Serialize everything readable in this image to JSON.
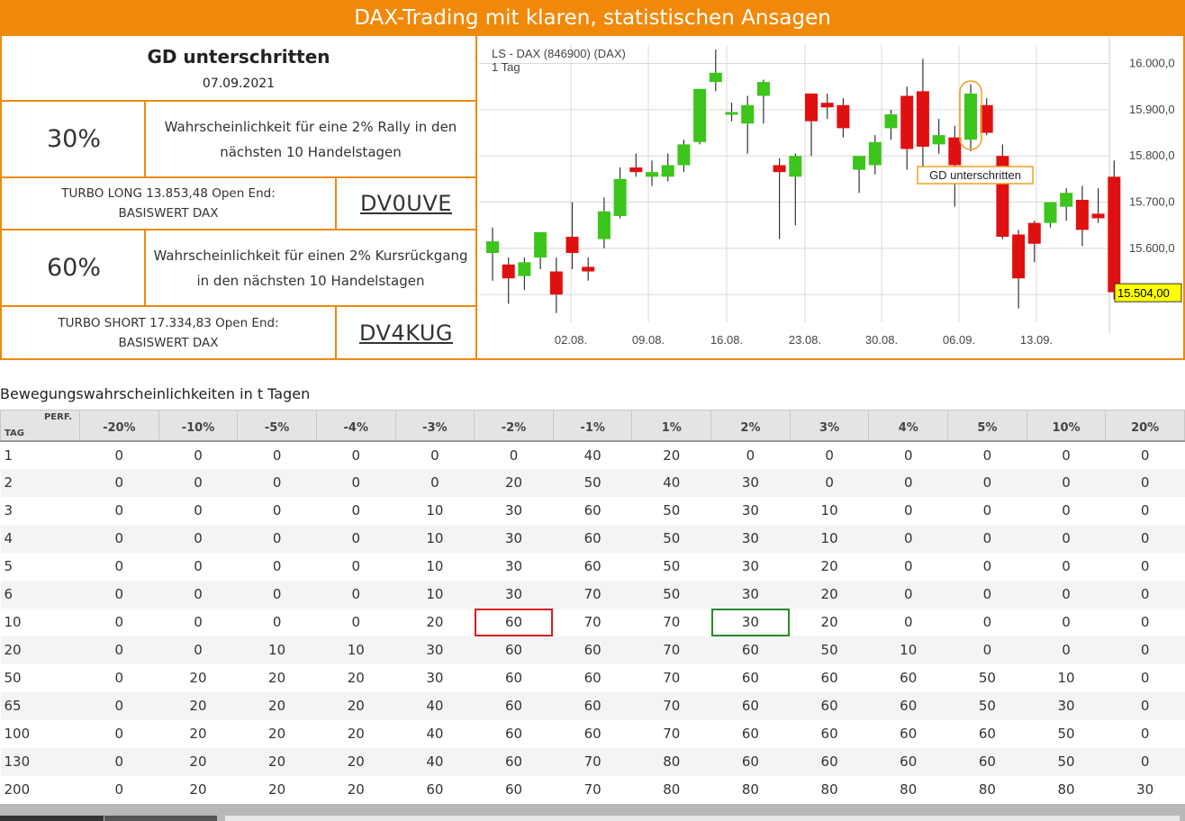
{
  "banner": {
    "title": "DAX-Trading mit klaren, statistischen Ansagen"
  },
  "signal": {
    "title": "GD unterschritten",
    "date": "07.09.2021"
  },
  "long": {
    "probability": "30%",
    "description_line1": "Wahrscheinlichkeit für eine 2% Rally in den",
    "description_line2": "nächsten 10 Handelstagen",
    "turbo_line1": "TURBO LONG 13.853,48 Open End:",
    "turbo_line2": "BASISWERT DAX",
    "code": "DV0UVE"
  },
  "short": {
    "probability": "60%",
    "description_line1": "Wahrscheinlichkeit für einen 2% Kursrückgang",
    "description_line2": "in den nächsten 10 Handelstagen",
    "turbo_line1": "TURBO SHORT 17.334,83 Open End:",
    "turbo_line2": "BASISWERT DAX",
    "code": "DV4KUG"
  },
  "chart_data": {
    "type": "candlestick",
    "title": "LS - DAX (846900) (DAX)",
    "subtitle": "1 Tag",
    "x_tick_labels": [
      "02.08.",
      "09.08.",
      "16.08.",
      "23.08.",
      "30.08.",
      "06.09.",
      "13.09."
    ],
    "y_tick_labels": [
      "16.000,0",
      "15.900,0",
      "15.800,0",
      "15.700,0",
      "15.600,0"
    ],
    "ylim": [
      15440,
      16040
    ],
    "last_price_label": "15.504,00",
    "annotation": "GD unterschritten",
    "colors": {
      "up": "#3cc51b",
      "down": "#e01010",
      "grid": "#d9d9d9",
      "label_box": "#ffff00",
      "annotation": "#f0a020"
    },
    "candles": [
      {
        "o": 15590,
        "h": 15645,
        "l": 15530,
        "c": 15615
      },
      {
        "o": 15565,
        "h": 15580,
        "l": 15480,
        "c": 15535
      },
      {
        "o": 15540,
        "h": 15580,
        "l": 15510,
        "c": 15570
      },
      {
        "o": 15580,
        "h": 15635,
        "l": 15555,
        "c": 15635
      },
      {
        "o": 15550,
        "h": 15580,
        "l": 15460,
        "c": 15500
      },
      {
        "o": 15625,
        "h": 15700,
        "l": 15555,
        "c": 15590
      },
      {
        "o": 15560,
        "h": 15580,
        "l": 15530,
        "c": 15550
      },
      {
        "o": 15620,
        "h": 15710,
        "l": 15600,
        "c": 15680
      },
      {
        "o": 15670,
        "h": 15775,
        "l": 15665,
        "c": 15750
      },
      {
        "o": 15775,
        "h": 15805,
        "l": 15755,
        "c": 15765
      },
      {
        "o": 15755,
        "h": 15790,
        "l": 15735,
        "c": 15765
      },
      {
        "o": 15755,
        "h": 15805,
        "l": 15745,
        "c": 15780
      },
      {
        "o": 15780,
        "h": 15835,
        "l": 15765,
        "c": 15825
      },
      {
        "o": 15830,
        "h": 15945,
        "l": 15825,
        "c": 15945
      },
      {
        "o": 15960,
        "h": 16030,
        "l": 15940,
        "c": 15980
      },
      {
        "o": 15895,
        "h": 15915,
        "l": 15875,
        "c": 15895
      },
      {
        "o": 15870,
        "h": 15930,
        "l": 15805,
        "c": 15910
      },
      {
        "o": 15930,
        "h": 15965,
        "l": 15870,
        "c": 15960
      },
      {
        "o": 15780,
        "h": 15795,
        "l": 15620,
        "c": 15765
      },
      {
        "o": 15755,
        "h": 15805,
        "l": 15650,
        "c": 15800
      },
      {
        "o": 15935,
        "h": 15935,
        "l": 15800,
        "c": 15875
      },
      {
        "o": 15915,
        "h": 15935,
        "l": 15880,
        "c": 15905
      },
      {
        "o": 15910,
        "h": 15925,
        "l": 15840,
        "c": 15860
      },
      {
        "o": 15770,
        "h": 15800,
        "l": 15720,
        "c": 15800
      },
      {
        "o": 15780,
        "h": 15845,
        "l": 15760,
        "c": 15830
      },
      {
        "o": 15860,
        "h": 15900,
        "l": 15835,
        "c": 15890
      },
      {
        "o": 15930,
        "h": 15950,
        "l": 15770,
        "c": 15815
      },
      {
        "o": 15940,
        "h": 16010,
        "l": 15770,
        "c": 15820
      },
      {
        "o": 15825,
        "h": 15880,
        "l": 15805,
        "c": 15845
      },
      {
        "o": 15840,
        "h": 15865,
        "l": 15690,
        "c": 15780
      },
      {
        "o": 15835,
        "h": 15955,
        "l": 15810,
        "c": 15935
      },
      {
        "o": 15910,
        "h": 15925,
        "l": 15845,
        "c": 15850
      },
      {
        "o": 15800,
        "h": 15825,
        "l": 15620,
        "c": 15625
      },
      {
        "o": 15630,
        "h": 15640,
        "l": 15470,
        "c": 15535
      },
      {
        "o": 15655,
        "h": 15660,
        "l": 15570,
        "c": 15610
      },
      {
        "o": 15655,
        "h": 15695,
        "l": 15645,
        "c": 15700
      },
      {
        "o": 15690,
        "h": 15730,
        "l": 15660,
        "c": 15720
      },
      {
        "o": 15705,
        "h": 15735,
        "l": 15605,
        "c": 15640
      },
      {
        "o": 15675,
        "h": 15730,
        "l": 15655,
        "c": 15665
      },
      {
        "o": 15755,
        "h": 15790,
        "l": 15490,
        "c": 15505
      }
    ]
  },
  "table": {
    "caption": "Bewegungswahrscheinlichkeiten in t Tagen",
    "corner_perf": "PERF.",
    "corner_tag": "TAG",
    "headers": [
      "-20%",
      "-10%",
      "-5%",
      "-4%",
      "-3%",
      "-2%",
      "-1%",
      "1%",
      "2%",
      "3%",
      "4%",
      "5%",
      "10%",
      "20%"
    ],
    "rows": [
      {
        "tag": "1",
        "values": [
          "0",
          "0",
          "0",
          "0",
          "0",
          "0",
          "40",
          "20",
          "0",
          "0",
          "0",
          "0",
          "0",
          "0"
        ]
      },
      {
        "tag": "2",
        "values": [
          "0",
          "0",
          "0",
          "0",
          "0",
          "20",
          "50",
          "40",
          "30",
          "0",
          "0",
          "0",
          "0",
          "0"
        ]
      },
      {
        "tag": "3",
        "values": [
          "0",
          "0",
          "0",
          "0",
          "10",
          "30",
          "60",
          "50",
          "30",
          "10",
          "0",
          "0",
          "0",
          "0"
        ]
      },
      {
        "tag": "4",
        "values": [
          "0",
          "0",
          "0",
          "0",
          "10",
          "30",
          "60",
          "50",
          "30",
          "10",
          "0",
          "0",
          "0",
          "0"
        ]
      },
      {
        "tag": "5",
        "values": [
          "0",
          "0",
          "0",
          "0",
          "10",
          "30",
          "60",
          "50",
          "30",
          "20",
          "0",
          "0",
          "0",
          "0"
        ]
      },
      {
        "tag": "6",
        "values": [
          "0",
          "0",
          "0",
          "0",
          "10",
          "30",
          "70",
          "50",
          "30",
          "20",
          "0",
          "0",
          "0",
          "0"
        ]
      },
      {
        "tag": "10",
        "values": [
          "0",
          "0",
          "0",
          "0",
          "20",
          "60",
          "70",
          "70",
          "30",
          "20",
          "0",
          "0",
          "0",
          "0"
        ]
      },
      {
        "tag": "20",
        "values": [
          "0",
          "0",
          "10",
          "10",
          "30",
          "60",
          "60",
          "70",
          "60",
          "50",
          "10",
          "0",
          "0",
          "0"
        ]
      },
      {
        "tag": "50",
        "values": [
          "0",
          "20",
          "20",
          "20",
          "30",
          "60",
          "60",
          "70",
          "60",
          "60",
          "60",
          "50",
          "10",
          "0"
        ]
      },
      {
        "tag": "65",
        "values": [
          "0",
          "20",
          "20",
          "20",
          "40",
          "60",
          "60",
          "70",
          "60",
          "60",
          "60",
          "50",
          "30",
          "0"
        ]
      },
      {
        "tag": "100",
        "values": [
          "0",
          "20",
          "20",
          "20",
          "40",
          "60",
          "60",
          "70",
          "60",
          "60",
          "60",
          "60",
          "50",
          "0"
        ]
      },
      {
        "tag": "130",
        "values": [
          "0",
          "20",
          "20",
          "20",
          "40",
          "60",
          "70",
          "80",
          "60",
          "60",
          "60",
          "60",
          "50",
          "0"
        ]
      },
      {
        "tag": "200",
        "values": [
          "0",
          "20",
          "20",
          "20",
          "60",
          "60",
          "70",
          "80",
          "80",
          "80",
          "80",
          "80",
          "80",
          "30"
        ]
      }
    ],
    "highlights": [
      {
        "row": 6,
        "col": 5,
        "color": "red"
      },
      {
        "row": 6,
        "col": 8,
        "color": "green"
      }
    ]
  }
}
